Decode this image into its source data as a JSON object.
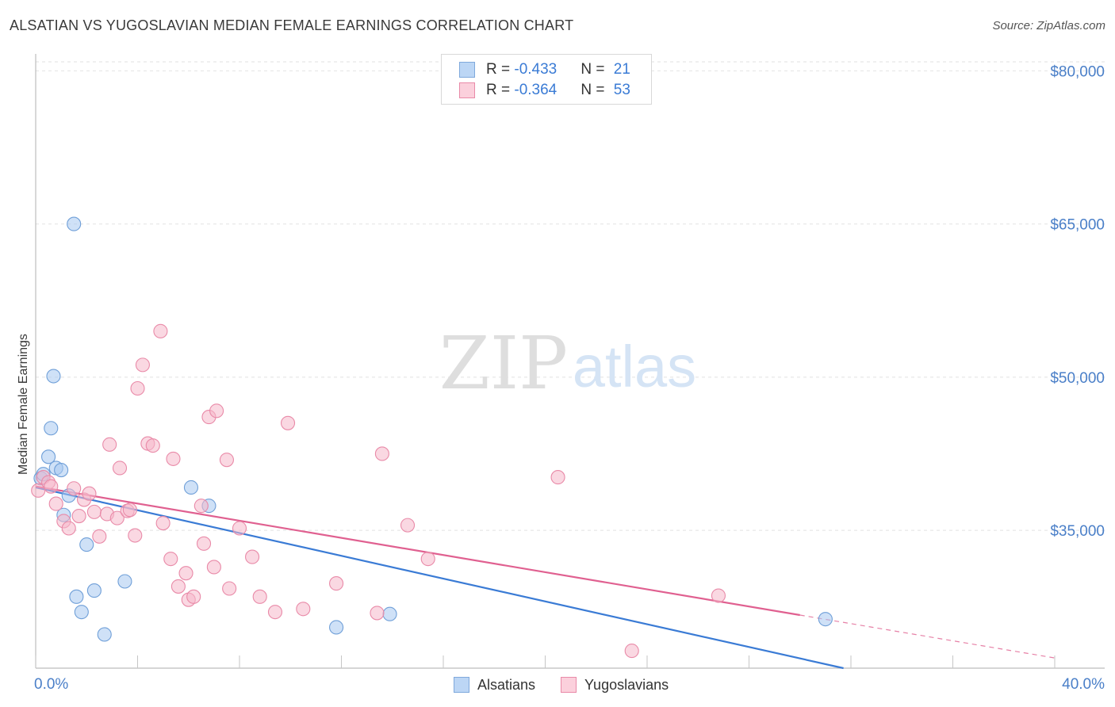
{
  "header": {
    "title": "ALSATIAN VS YUGOSLAVIAN MEDIAN FEMALE EARNINGS CORRELATION CHART",
    "source": "Source: ZipAtlas.com"
  },
  "watermark": {
    "zip": "ZIP",
    "atlas": "atlas"
  },
  "legend_box": {
    "rows": [
      {
        "r_label": "R = ",
        "r_value": "-0.433",
        "n_label": "N = ",
        "n_value": "21",
        "color": "#a8c8f0"
      },
      {
        "r_label": "R = ",
        "r_value": "-0.364",
        "n_label": "N = ",
        "n_value": "53",
        "color": "#f5b8ca"
      }
    ]
  },
  "chart_data": {
    "type": "scatter",
    "title": "ALSATIAN VS YUGOSLAVIAN MEDIAN FEMALE EARNINGS CORRELATION CHART",
    "xlabel": "",
    "ylabel": "Median Female Earnings",
    "xlim": [
      0,
      40
    ],
    "ylim": [
      21500,
      81500
    ],
    "x_tick_labels": [
      "0.0%",
      "40.0%"
    ],
    "y_ticks": [
      35000,
      50000,
      65000,
      80000
    ],
    "y_tick_labels": [
      "$35,000",
      "$50,000",
      "$65,000",
      "$80,000"
    ],
    "grid": true,
    "legend_position": "bottom-center",
    "series": [
      {
        "name": "Alsatians",
        "color": "#a8c8f0",
        "stroke": "#6f9fd8",
        "line_color": "#3a7bd5",
        "trend": {
          "x": [
            0,
            33.5
          ],
          "y": [
            39200,
            20500
          ],
          "dashed_from": null
        },
        "points": [
          {
            "x": 0.2,
            "y": 40100
          },
          {
            "x": 0.3,
            "y": 40500
          },
          {
            "x": 0.5,
            "y": 42200
          },
          {
            "x": 0.6,
            "y": 45000
          },
          {
            "x": 0.7,
            "y": 50100
          },
          {
            "x": 0.8,
            "y": 41100
          },
          {
            "x": 1.0,
            "y": 40900
          },
          {
            "x": 1.1,
            "y": 36500
          },
          {
            "x": 1.3,
            "y": 38400
          },
          {
            "x": 1.5,
            "y": 65000
          },
          {
            "x": 1.6,
            "y": 28500
          },
          {
            "x": 1.8,
            "y": 27000
          },
          {
            "x": 2.0,
            "y": 33600
          },
          {
            "x": 2.3,
            "y": 29100
          },
          {
            "x": 2.7,
            "y": 24800
          },
          {
            "x": 3.5,
            "y": 30000
          },
          {
            "x": 6.1,
            "y": 39200
          },
          {
            "x": 6.8,
            "y": 37400
          },
          {
            "x": 11.8,
            "y": 25500
          },
          {
            "x": 13.9,
            "y": 26800
          },
          {
            "x": 31.0,
            "y": 26300
          }
        ]
      },
      {
        "name": "Yugoslavians",
        "color": "#f5b8ca",
        "stroke": "#e98aa8",
        "line_color": "#e06090",
        "trend": {
          "x": [
            0,
            40
          ],
          "y": [
            39300,
            22500
          ],
          "dashed_from": 30.0
        },
        "points": [
          {
            "x": 0.1,
            "y": 38900
          },
          {
            "x": 0.3,
            "y": 40200
          },
          {
            "x": 0.5,
            "y": 39700
          },
          {
            "x": 0.6,
            "y": 39300
          },
          {
            "x": 0.8,
            "y": 37600
          },
          {
            "x": 1.1,
            "y": 35900
          },
          {
            "x": 1.3,
            "y": 35200
          },
          {
            "x": 1.5,
            "y": 39100
          },
          {
            "x": 1.7,
            "y": 36400
          },
          {
            "x": 1.9,
            "y": 38000
          },
          {
            "x": 2.1,
            "y": 38600
          },
          {
            "x": 2.3,
            "y": 36800
          },
          {
            "x": 2.5,
            "y": 34400
          },
          {
            "x": 2.8,
            "y": 36600
          },
          {
            "x": 2.9,
            "y": 43400
          },
          {
            "x": 3.2,
            "y": 36200
          },
          {
            "x": 3.3,
            "y": 41100
          },
          {
            "x": 3.6,
            "y": 36900
          },
          {
            "x": 3.7,
            "y": 37000
          },
          {
            "x": 3.9,
            "y": 34500
          },
          {
            "x": 4.0,
            "y": 48900
          },
          {
            "x": 4.2,
            "y": 51200
          },
          {
            "x": 4.4,
            "y": 43500
          },
          {
            "x": 4.6,
            "y": 43300
          },
          {
            "x": 4.9,
            "y": 54500
          },
          {
            "x": 5.0,
            "y": 35700
          },
          {
            "x": 5.3,
            "y": 32200
          },
          {
            "x": 5.4,
            "y": 42000
          },
          {
            "x": 5.6,
            "y": 29500
          },
          {
            "x": 5.9,
            "y": 30800
          },
          {
            "x": 6.0,
            "y": 28200
          },
          {
            "x": 6.2,
            "y": 28500
          },
          {
            "x": 6.5,
            "y": 37400
          },
          {
            "x": 6.6,
            "y": 33700
          },
          {
            "x": 6.8,
            "y": 46100
          },
          {
            "x": 7.0,
            "y": 31400
          },
          {
            "x": 7.1,
            "y": 46700
          },
          {
            "x": 7.5,
            "y": 41900
          },
          {
            "x": 7.6,
            "y": 29300
          },
          {
            "x": 8.0,
            "y": 35200
          },
          {
            "x": 8.5,
            "y": 32400
          },
          {
            "x": 8.8,
            "y": 28500
          },
          {
            "x": 9.4,
            "y": 27000
          },
          {
            "x": 9.9,
            "y": 45500
          },
          {
            "x": 10.5,
            "y": 27300
          },
          {
            "x": 11.8,
            "y": 29800
          },
          {
            "x": 13.4,
            "y": 26900
          },
          {
            "x": 13.6,
            "y": 42500
          },
          {
            "x": 14.6,
            "y": 35500
          },
          {
            "x": 15.4,
            "y": 32200
          },
          {
            "x": 20.5,
            "y": 40200
          },
          {
            "x": 23.4,
            "y": 23200
          },
          {
            "x": 26.8,
            "y": 28600
          }
        ]
      }
    ]
  }
}
